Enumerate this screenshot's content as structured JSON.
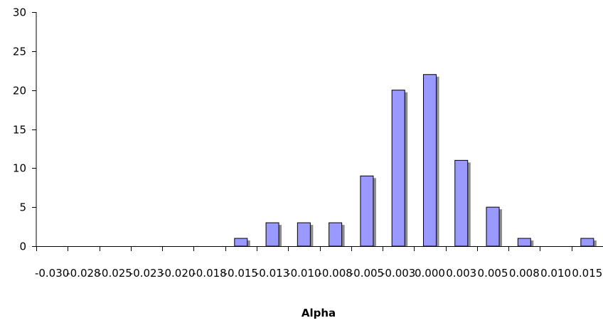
{
  "chart_data": {
    "type": "bar",
    "title": "",
    "xlabel": "Alpha",
    "ylabel": "",
    "ylim": [
      0,
      30
    ],
    "yticks": [
      0,
      5,
      10,
      15,
      20,
      25,
      30
    ],
    "grid": false,
    "legend": "none",
    "categories": [
      "-0.030",
      "-0.028",
      "-0.025",
      "-0.023",
      "-0.020",
      "-0.018",
      "-0.015",
      "-0.013",
      "-0.010",
      "-0.008",
      "-0.005",
      "-0.003",
      "0.000",
      "0.003",
      "0.005",
      "0.008",
      "0.010",
      "0.015"
    ],
    "values": [
      0,
      0,
      0,
      0,
      0,
      0,
      1,
      3,
      3,
      3,
      9,
      20,
      22,
      11,
      5,
      1,
      0,
      1
    ],
    "colors": {
      "bar_fill": "#9999ff",
      "bar_stroke": "#000000",
      "bar_shadow": "#8c8c8c",
      "axis": "#000000",
      "background": "#ffffff"
    }
  }
}
